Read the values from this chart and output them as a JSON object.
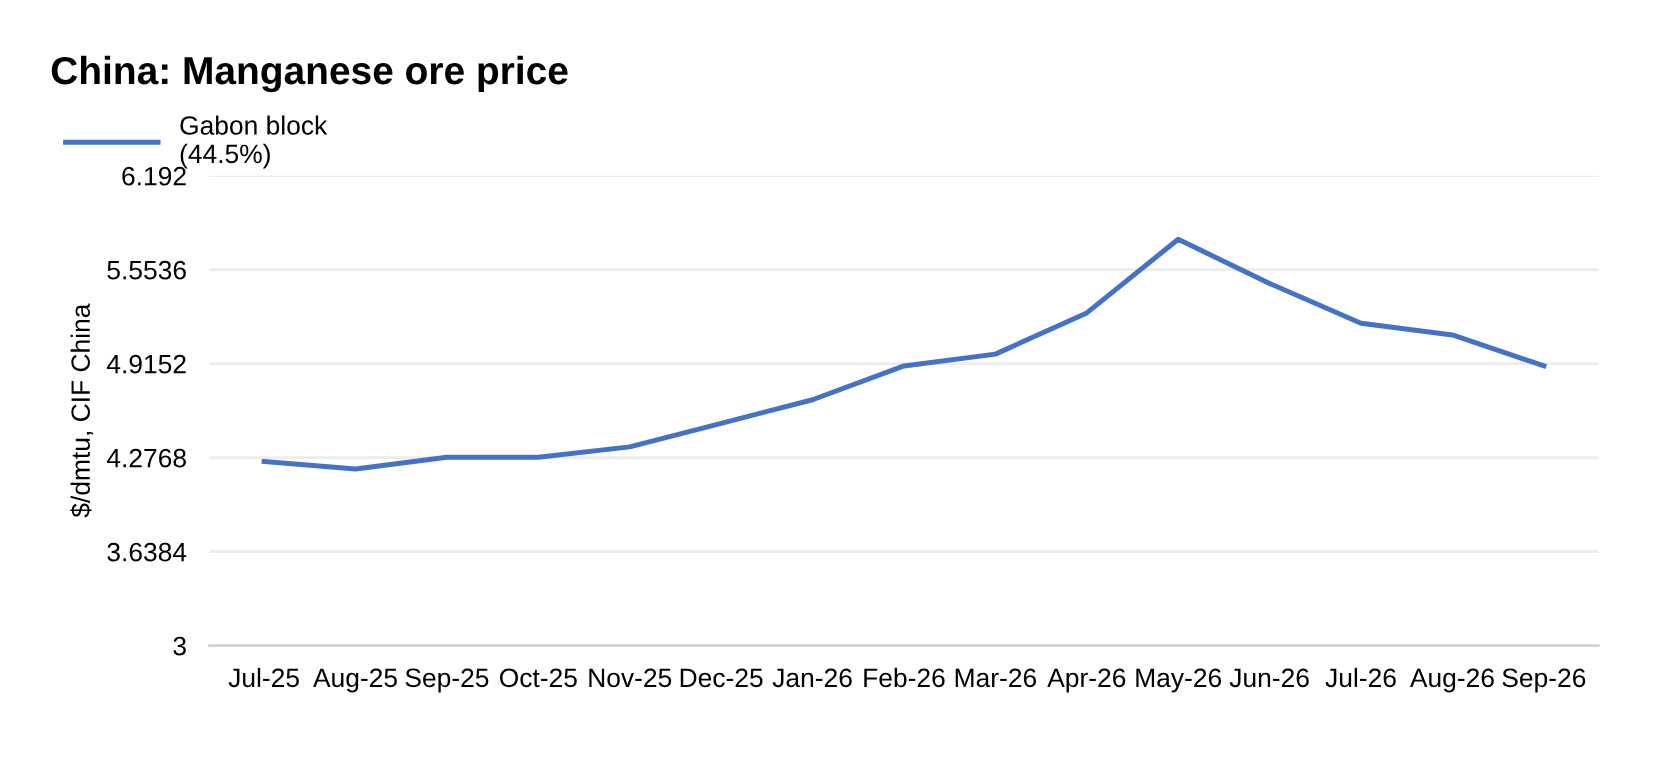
{
  "chart_data": {
    "type": "line",
    "title": "China: Manganese ore price",
    "ylabel": "$/dmtu, CIF China",
    "categories": [
      "Jul-25",
      "Aug-25",
      "Sep-25",
      "Oct-25",
      "Nov-25",
      "Dec-25",
      "Jan-26",
      "Feb-26",
      "Mar-26",
      "Apr-26",
      "May-26",
      "Jun-26",
      "Jul-26",
      "Aug-26",
      "Sep-26"
    ],
    "series": [
      {
        "name": "Gabon block\n(44.5%)",
        "color": "#4472c4",
        "values": [
          4.25,
          4.2,
          4.28,
          4.28,
          4.35,
          4.51,
          4.67,
          4.9,
          4.98,
          5.26,
          5.76,
          5.46,
          5.19,
          5.11,
          4.9
        ]
      }
    ],
    "ylim": [
      3,
      6.192
    ],
    "yticks": [
      3,
      3.6384,
      4.2768,
      4.9152,
      5.5536,
      6.192
    ],
    "grid": "y",
    "legend": "top left",
    "marker": "none",
    "line_style": "solid"
  }
}
